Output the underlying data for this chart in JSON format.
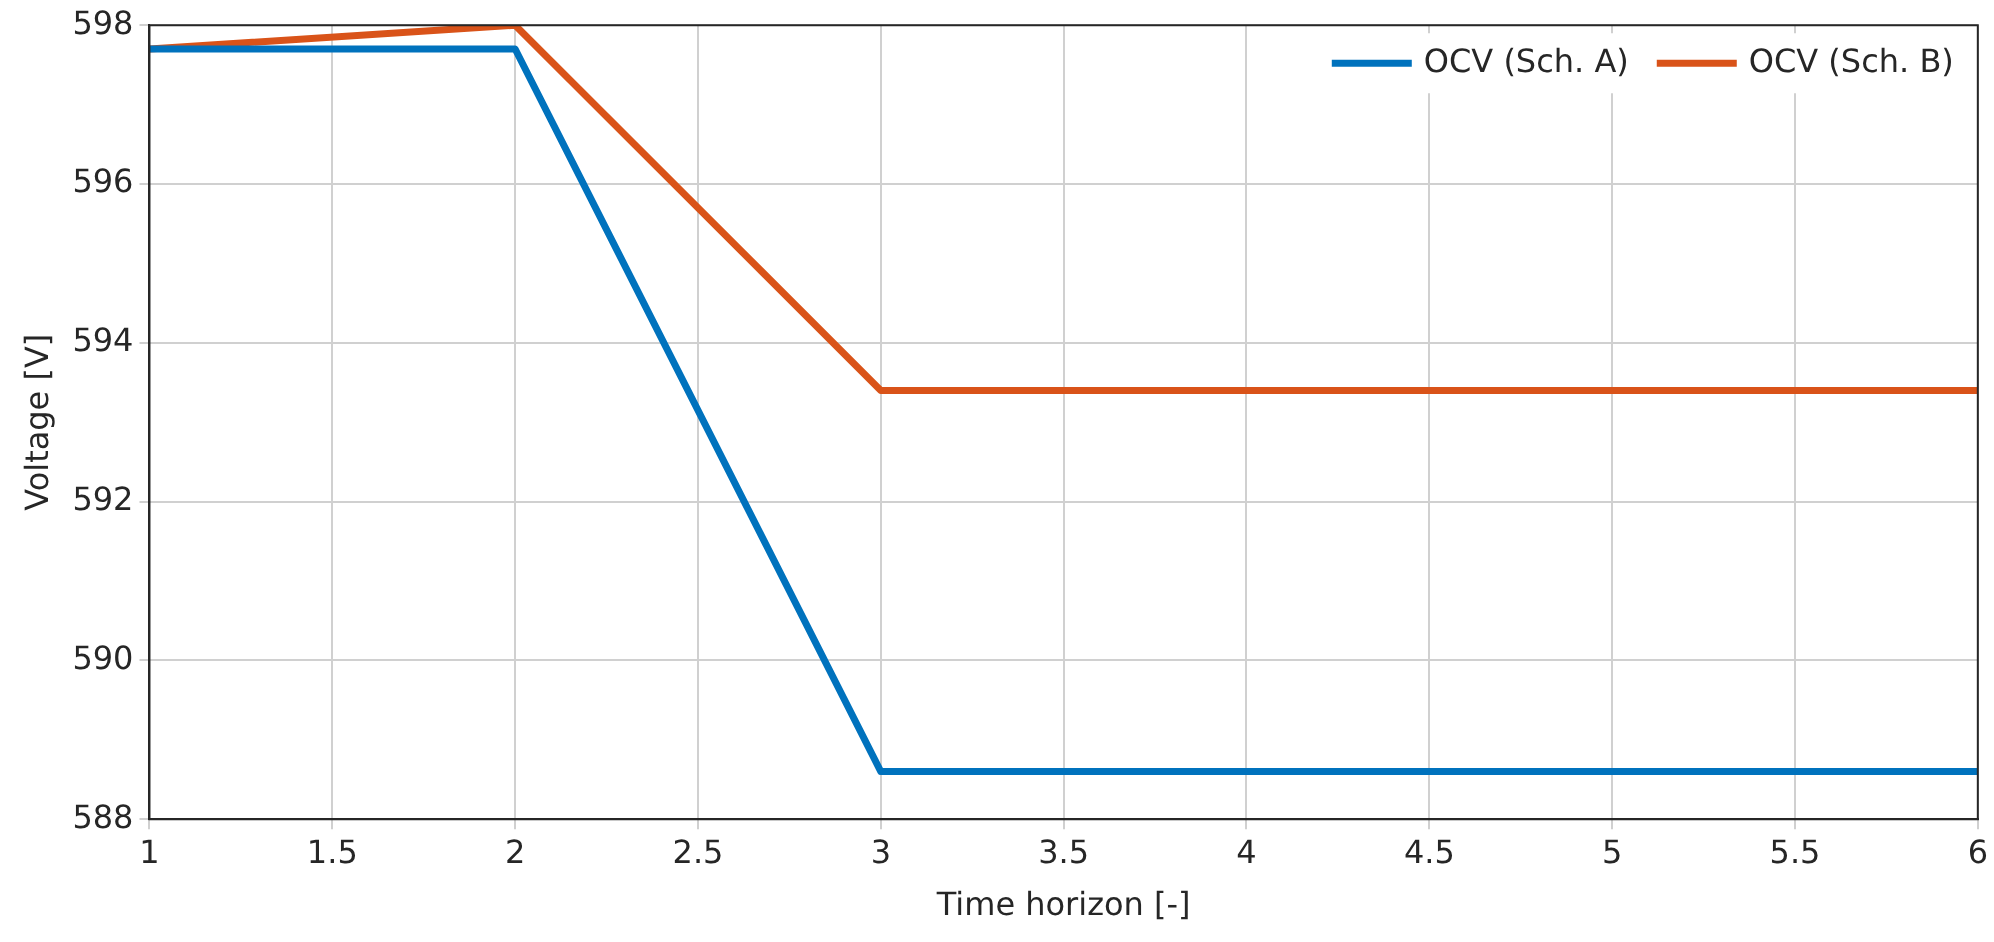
{
  "chart_data": {
    "type": "line",
    "xlabel": "Time horizon [-]",
    "ylabel": "Voltage [V]",
    "xlim": [
      1,
      6
    ],
    "xticks": [
      1,
      1.5,
      2,
      2.5,
      3,
      3.5,
      4,
      4.5,
      5,
      5.5,
      6
    ],
    "ylim": [
      588,
      598
    ],
    "yticks": [
      588,
      590,
      592,
      594,
      596,
      598
    ],
    "grid": true,
    "legend": "top right",
    "marker": "none",
    "line_style": "solid",
    "series": [
      {
        "name": "OCV (Sch. A)",
        "color": "#0072bd",
        "x": [
          1,
          2,
          3,
          6
        ],
        "values": [
          597.7,
          597.7,
          588.6,
          588.6
        ]
      },
      {
        "name": "OCV (Sch. B)",
        "color": "#d95319",
        "x": [
          1,
          2,
          3,
          6
        ],
        "values": [
          597.7,
          598,
          593.4,
          593.4
        ]
      }
    ]
  }
}
